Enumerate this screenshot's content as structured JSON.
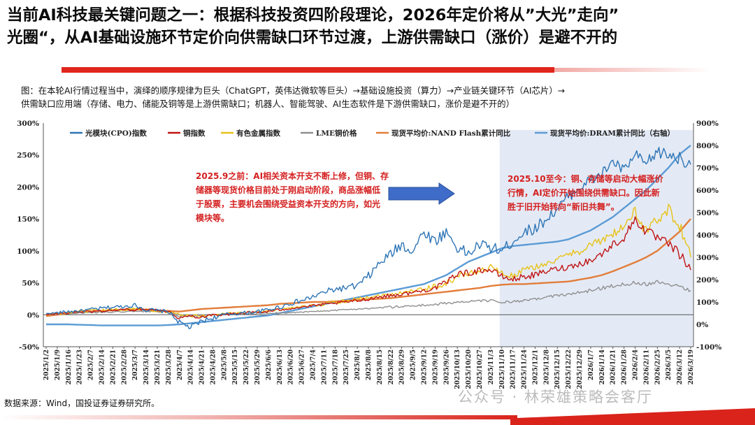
{
  "title": {
    "line1": "当前AI科技最关键问题之一：根据科技投资四阶段理论，2026年定价将从”大光”走向”",
    "line2": "光圈“，从AI基础设施环节定价向供需缺口环节过渡，上游供需缺口（涨价）是避不开的"
  },
  "caption": {
    "line1": "图：在本轮AI行情过程当中，演绎的顺序规律为巨头（ChatGPT，英伟达微软等巨头）→基础设施投资（算力）→产业链关键环节（AI芯片）→",
    "line2": "供需缺口应用端（存储、电力、储能及铜等是上游供需缺口；机器人、智能驾驶、AI生态软件是下游供需缺口，涨价是避不开的）"
  },
  "source": "数据来源：Wind，国投证券证券研究所。",
  "watermark": "公众号 · 林荣雄策略会客厅",
  "colors": {
    "title_bar": "#e0261d",
    "annotation_text": "#d42020",
    "highlight": "#dbe3f2"
  },
  "chart_data": {
    "type": "line",
    "x_tick_labels": [
      "2025/1/2",
      "2025/1/9",
      "2025/1/16",
      "2025/1/23",
      "2025/2/7",
      "2025/2/14",
      "2025/2/21",
      "2025/2/28",
      "2025/3/7",
      "2025/3/14",
      "2025/3/21",
      "2025/3/28",
      "2025/4/7",
      "2025/4/14",
      "2025/4/21",
      "2025/4/28",
      "2025/5/8",
      "2025/5/15",
      "2025/5/22",
      "2025/5/29",
      "2025/6/6",
      "2025/6/13",
      "2025/6/20",
      "2025/6/27",
      "2025/7/4",
      "2025/7/11",
      "2025/7/18",
      "2025/7/25",
      "2025/8/1",
      "2025/8/8",
      "2025/8/15",
      "2025/8/22",
      "2025/8/29",
      "2025/9/5",
      "2025/9/12",
      "2025/9/19",
      "2025/9/26",
      "2025/10/13",
      "2025/10/20",
      "2025/10/27",
      "2025/11/3",
      "2025/11/10",
      "2025/11/17",
      "2025/11/24",
      "2025/12/1",
      "2025/12/8",
      "2025/12/15",
      "2025/12/22",
      "2025/12/29",
      "2026/1/7",
      "2026/1/14",
      "2026/1/21",
      "2026/1/28",
      "2026/2/4",
      "2026/2/11",
      "2026/2/25",
      "2026/3/5",
      "2026/3/12",
      "2026/3/19"
    ],
    "y_left": {
      "ticks": [
        "300%",
        "250%",
        "200%",
        "150%",
        "100%",
        "50%",
        "0%",
        "-50%"
      ],
      "range": [
        -50,
        300
      ]
    },
    "y_right": {
      "ticks": [
        "900%",
        "800%",
        "700%",
        "600%",
        "500%",
        "400%",
        "300%",
        "200%",
        "100%",
        "0%",
        "-100%"
      ],
      "range": [
        -100,
        900
      ]
    },
    "series": [
      {
        "name": "光模块(CPO)指数",
        "color": "#2e75b6",
        "axis": "left",
        "noisy": true,
        "values": [
          2,
          3,
          5,
          6,
          8,
          10,
          12,
          13,
          15,
          8,
          6,
          5,
          -12,
          -20,
          -10,
          -5,
          0,
          2,
          3,
          5,
          8,
          12,
          18,
          22,
          28,
          35,
          40,
          42,
          45,
          60,
          80,
          95,
          110,
          100,
          130,
          115,
          130,
          105,
          95,
          110,
          105,
          100,
          115,
          130,
          135,
          150,
          165,
          185,
          200,
          210,
          220,
          240,
          225,
          250,
          235,
          255,
          250,
          245,
          235
        ],
        "jitter": [
          0,
          2,
          3,
          2,
          3,
          3,
          3,
          3,
          3,
          4,
          3,
          3,
          4,
          5,
          4,
          4,
          3,
          3,
          3,
          3,
          3,
          4,
          4,
          4,
          4,
          5,
          5,
          5,
          6,
          7,
          8,
          8,
          9,
          10,
          9,
          9,
          9,
          9,
          9,
          9,
          9,
          9,
          9,
          9,
          9,
          9,
          9,
          9,
          9,
          9,
          9,
          9,
          9,
          9,
          10,
          10,
          10,
          10,
          10
        ]
      },
      {
        "name": "铜指数",
        "color": "#c01515",
        "axis": "left",
        "noisy": true,
        "values": [
          0,
          2,
          3,
          5,
          5,
          6,
          7,
          8,
          8,
          9,
          8,
          5,
          -5,
          -2,
          -3,
          0,
          0,
          2,
          3,
          4,
          5,
          8,
          10,
          12,
          14,
          16,
          18,
          20,
          22,
          25,
          28,
          30,
          32,
          35,
          38,
          42,
          50,
          65,
          65,
          70,
          70,
          60,
          55,
          60,
          62,
          68,
          72,
          75,
          80,
          85,
          95,
          110,
          120,
          150,
          130,
          120,
          110,
          95,
          70
        ],
        "jitter": [
          0,
          2,
          2,
          2,
          2,
          2,
          2,
          2,
          2,
          2,
          2,
          2,
          3,
          3,
          3,
          2,
          2,
          2,
          2,
          2,
          2,
          2,
          2,
          2,
          2,
          2,
          2,
          2,
          3,
          3,
          3,
          3,
          3,
          3,
          3,
          4,
          5,
          5,
          5,
          5,
          5,
          5,
          5,
          5,
          5,
          5,
          5,
          5,
          5,
          6,
          6,
          6,
          7,
          8,
          8,
          8,
          8,
          8,
          8
        ]
      },
      {
        "name": "有色金属指数",
        "color": "#e8c21a",
        "axis": "left",
        "noisy": true,
        "values": [
          0,
          2,
          3,
          5,
          6,
          7,
          8,
          8,
          10,
          8,
          6,
          5,
          0,
          -2,
          -3,
          0,
          2,
          3,
          4,
          5,
          6,
          8,
          10,
          12,
          15,
          17,
          20,
          22,
          25,
          28,
          30,
          32,
          35,
          38,
          40,
          45,
          48,
          60,
          65,
          68,
          75,
          65,
          60,
          70,
          75,
          80,
          85,
          95,
          100,
          110,
          115,
          125,
          140,
          160,
          130,
          150,
          165,
          140,
          90
        ],
        "jitter": [
          0,
          2,
          2,
          2,
          2,
          2,
          2,
          2,
          2,
          2,
          2,
          2,
          3,
          3,
          3,
          2,
          2,
          2,
          2,
          2,
          2,
          2,
          2,
          2,
          2,
          3,
          3,
          3,
          3,
          3,
          3,
          3,
          3,
          3,
          4,
          4,
          5,
          5,
          5,
          5,
          5,
          5,
          5,
          5,
          5,
          5,
          5,
          6,
          6,
          7,
          7,
          8,
          8,
          9,
          9,
          9,
          9,
          9,
          9
        ]
      },
      {
        "name": "LME铜价格",
        "color": "#8f8f8f",
        "axis": "left",
        "noisy": true,
        "values": [
          0,
          1,
          2,
          3,
          3,
          4,
          4,
          5,
          5,
          5,
          5,
          4,
          -2,
          -3,
          -2,
          0,
          0,
          1,
          1,
          2,
          2,
          3,
          3,
          4,
          5,
          6,
          7,
          8,
          9,
          10,
          11,
          12,
          13,
          14,
          15,
          16,
          18,
          20,
          20,
          22,
          22,
          20,
          20,
          22,
          24,
          28,
          30,
          32,
          35,
          38,
          42,
          45,
          48,
          50,
          48,
          52,
          48,
          45,
          38
        ],
        "jitter": [
          0,
          1,
          1,
          1,
          1,
          1,
          1,
          1,
          1,
          1,
          1,
          1,
          2,
          2,
          2,
          1,
          1,
          1,
          1,
          1,
          1,
          1,
          1,
          1,
          1,
          1,
          1,
          1,
          1,
          1,
          1,
          2,
          2,
          2,
          2,
          2,
          2,
          2,
          2,
          2,
          2,
          2,
          2,
          2,
          2,
          2,
          2,
          2,
          2,
          3,
          3,
          3,
          3,
          3,
          3,
          3,
          3,
          3,
          3
        ]
      },
      {
        "name": "现货平均价:NAND Flash累计同比",
        "color": "#e27d3a",
        "axis": "left",
        "noisy": false,
        "values": [
          -2,
          0,
          2,
          4,
          5,
          6,
          7,
          8,
          8,
          8,
          7,
          6,
          5,
          7,
          9,
          10,
          11,
          12,
          13,
          14,
          15,
          17,
          18,
          19,
          20,
          20,
          21,
          22,
          23,
          24,
          25,
          26,
          28,
          30,
          32,
          34,
          36,
          38,
          40,
          42,
          45,
          47,
          48,
          48,
          49,
          50,
          51,
          52,
          55,
          58,
          62,
          68,
          75,
          82,
          90,
          100,
          115,
          130,
          150
        ],
        "jitter": [
          0,
          0,
          0,
          0,
          0,
          0,
          0,
          0,
          0,
          0,
          0,
          0,
          0,
          0,
          0,
          0,
          0,
          0,
          0,
          0,
          0,
          0,
          0,
          0,
          0,
          0,
          0,
          0,
          0,
          0,
          0,
          0,
          0,
          0,
          0,
          0,
          0,
          0,
          0,
          0,
          0,
          0,
          0,
          0,
          0,
          0,
          0,
          0,
          0,
          0,
          0,
          0,
          0,
          0,
          0,
          0,
          0,
          0,
          0
        ]
      },
      {
        "name": "现货平均价:DRAM累计同比（右轴）",
        "color": "#5b9bd5",
        "axis": "right",
        "noisy": false,
        "values": [
          0,
          0,
          0,
          -2,
          -3,
          -5,
          -5,
          -5,
          -5,
          -5,
          -5,
          -3,
          0,
          5,
          10,
          15,
          20,
          25,
          30,
          35,
          40,
          50,
          60,
          70,
          80,
          90,
          100,
          110,
          120,
          130,
          140,
          150,
          160,
          170,
          180,
          200,
          220,
          250,
          280,
          300,
          320,
          340,
          350,
          355,
          360,
          365,
          370,
          380,
          400,
          420,
          450,
          480,
          520,
          560,
          600,
          650,
          700,
          760,
          800
        ],
        "jitter": [
          0,
          0,
          0,
          0,
          0,
          0,
          0,
          0,
          0,
          0,
          0,
          0,
          0,
          0,
          0,
          0,
          0,
          0,
          0,
          0,
          0,
          0,
          0,
          0,
          0,
          0,
          0,
          0,
          0,
          0,
          0,
          0,
          0,
          0,
          0,
          0,
          0,
          0,
          0,
          0,
          0,
          0,
          0,
          0,
          0,
          0,
          0,
          0,
          0,
          0,
          0,
          0,
          0,
          0,
          0,
          0,
          0,
          0,
          0
        ]
      }
    ],
    "highlight_range": [
      "2025/11/10",
      "2026/3/19"
    ],
    "annotations": [
      {
        "text": "2025.9之前：AI相关资本开支不断上修，但铜、存储器等现货价格目前处于刚启动阶段，商品涨幅低于股票，主要机会围绕受益资本开支的方向，如光模块等。"
      },
      {
        "text": "2025.10至今：铜、存储等启动大幅涨价行情，AI定价开始围绕供需缺口。因此新胜于旧开始转向“新旧共舞”。"
      }
    ],
    "legend_position": "top",
    "grid": false
  }
}
